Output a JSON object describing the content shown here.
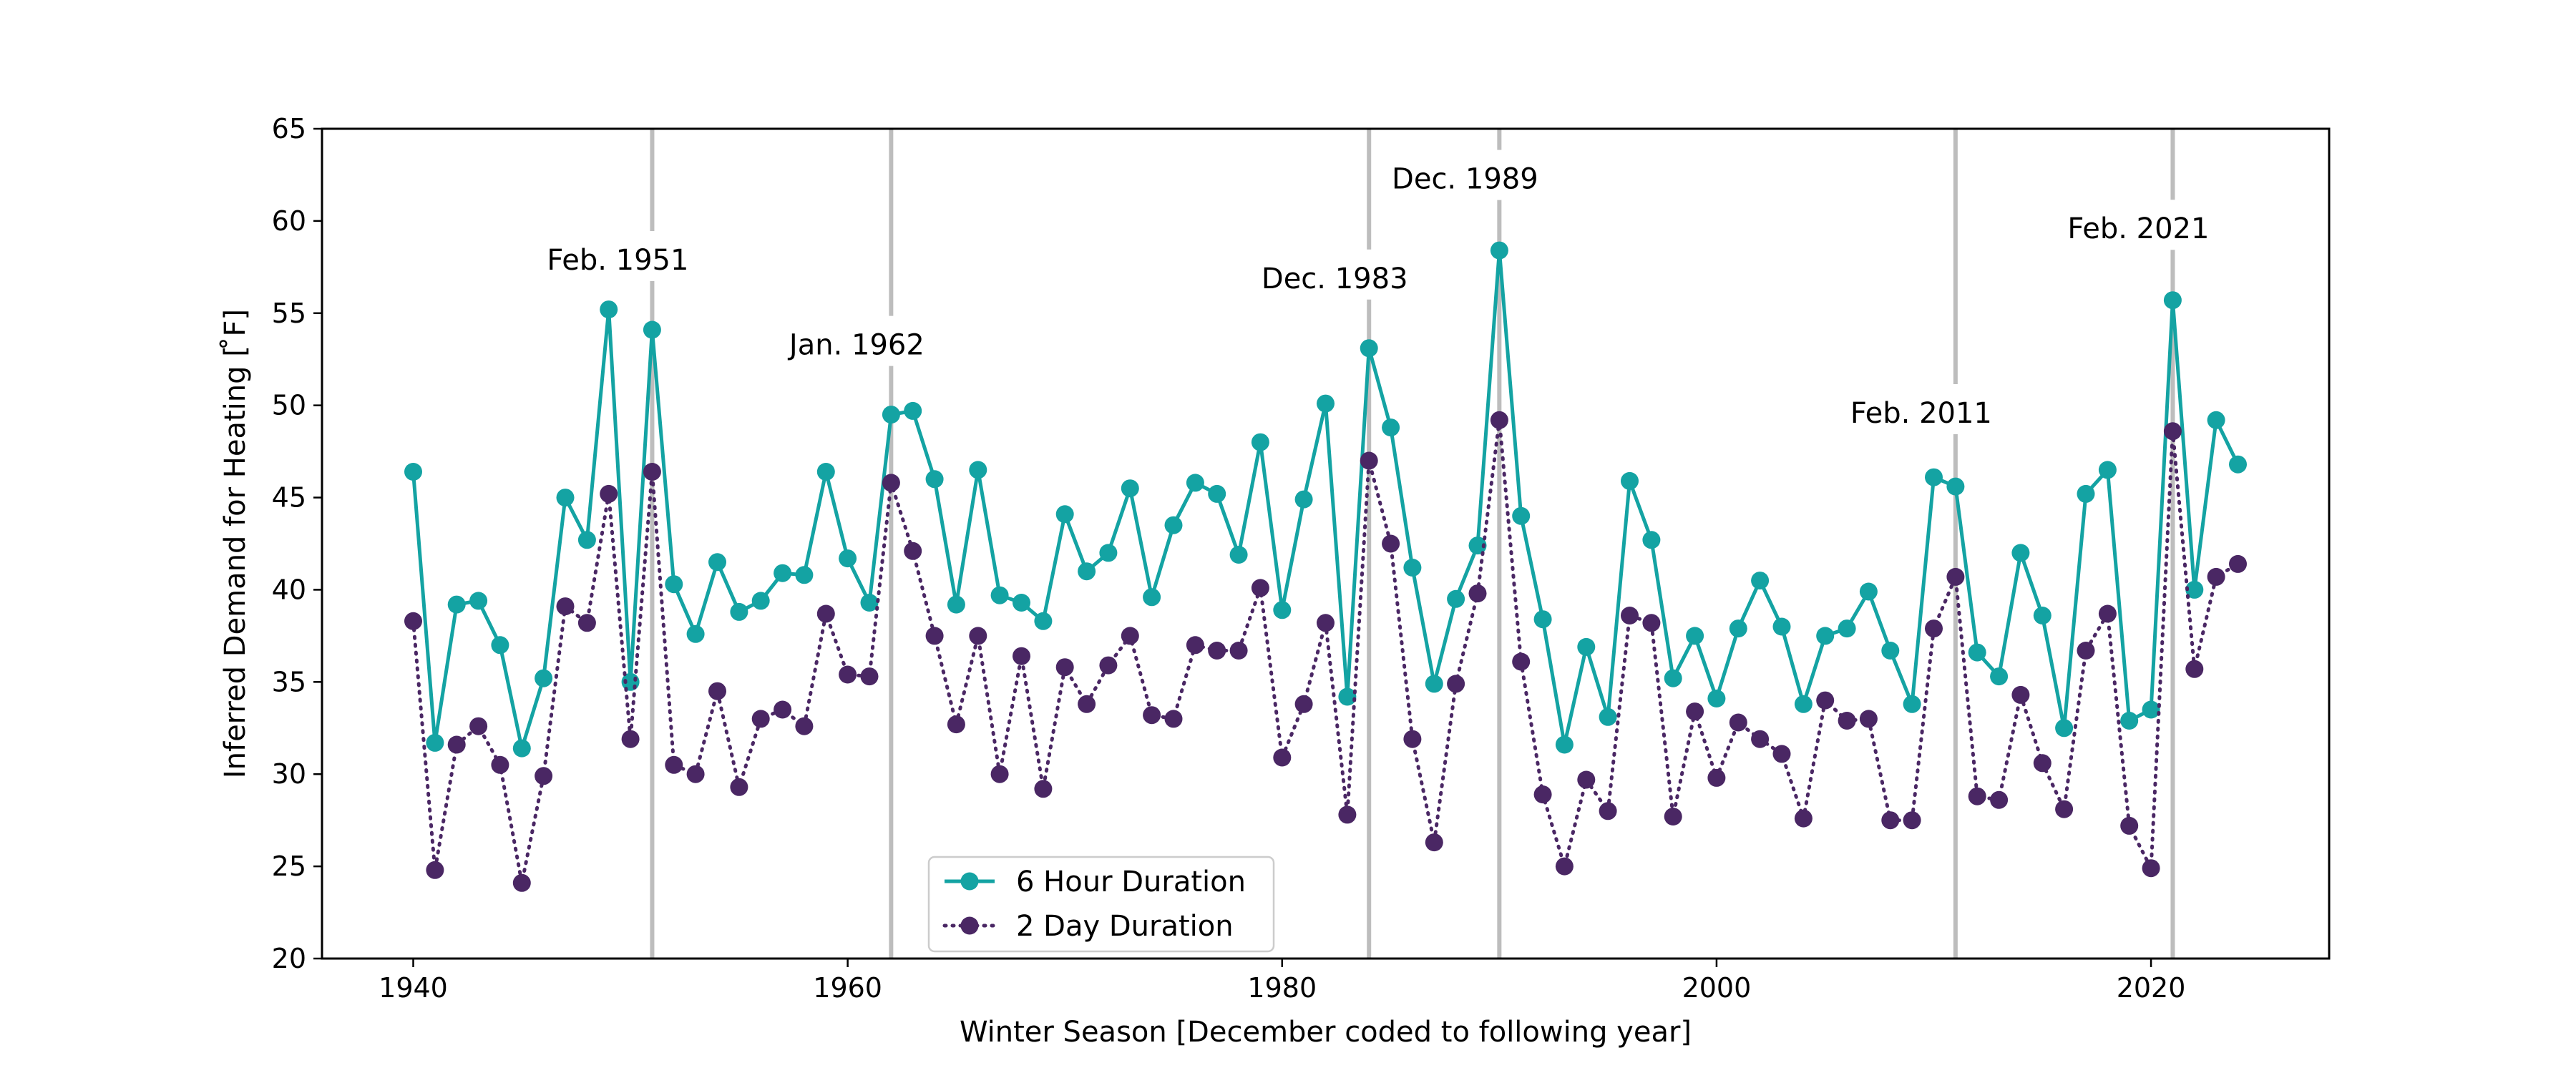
{
  "chart_data": {
    "type": "line",
    "xlabel": "Winter Season [December coded to following year]",
    "ylabel": "Inferred Demand for Heating [$^\\circ$F]",
    "ylabel_display": "Inferred Demand for Heating [ ̊F]",
    "xlim": [
      1935.8,
      2028.2
    ],
    "ylim": [
      20,
      65
    ],
    "xticks": [
      1940,
      1960,
      1980,
      2000,
      2020
    ],
    "yticks": [
      20,
      25,
      30,
      35,
      40,
      45,
      50,
      55,
      60,
      65
    ],
    "grid": false,
    "legend_position": "bottom-center",
    "x": [
      1940,
      1941,
      1942,
      1943,
      1944,
      1945,
      1946,
      1947,
      1948,
      1949,
      1950,
      1951,
      1952,
      1953,
      1954,
      1955,
      1956,
      1957,
      1958,
      1959,
      1960,
      1961,
      1962,
      1963,
      1964,
      1965,
      1966,
      1967,
      1968,
      1969,
      1970,
      1971,
      1972,
      1973,
      1974,
      1975,
      1976,
      1977,
      1978,
      1979,
      1980,
      1981,
      1982,
      1983,
      1984,
      1985,
      1986,
      1987,
      1988,
      1989,
      1990,
      1991,
      1992,
      1993,
      1994,
      1995,
      1996,
      1997,
      1998,
      1999,
      2000,
      2001,
      2002,
      2003,
      2004,
      2005,
      2006,
      2007,
      2008,
      2009,
      2010,
      2011,
      2012,
      2013,
      2014,
      2015,
      2016,
      2017,
      2018,
      2019,
      2020,
      2021,
      2022,
      2023,
      2024
    ],
    "series": [
      {
        "name": "6 Hour Duration",
        "color": "#14a3a3",
        "style": "solid",
        "values": [
          46.4,
          31.7,
          39.2,
          39.4,
          37.0,
          31.4,
          35.2,
          45.0,
          42.7,
          55.2,
          35.0,
          54.1,
          40.3,
          37.6,
          41.5,
          38.8,
          39.4,
          40.9,
          40.8,
          46.4,
          41.7,
          39.3,
          49.5,
          49.7,
          46.0,
          39.2,
          46.5,
          39.7,
          39.3,
          38.3,
          44.1,
          41.0,
          42.0,
          45.5,
          39.6,
          43.5,
          45.8,
          45.2,
          41.9,
          48.0,
          38.9,
          44.9,
          50.1,
          34.2,
          53.1,
          48.8,
          41.2,
          34.9,
          39.5,
          42.4,
          58.4,
          44.0,
          38.4,
          31.6,
          36.9,
          33.1,
          45.9,
          42.7,
          35.2,
          37.5,
          34.1,
          37.9,
          40.5,
          38.0,
          33.8,
          37.5,
          37.9,
          39.9,
          36.7,
          33.8,
          46.1,
          45.6,
          36.6,
          35.3,
          42.0,
          38.6,
          32.5,
          45.2,
          46.5,
          32.9,
          33.5,
          55.7,
          40.0,
          49.2,
          46.8
        ]
      },
      {
        "name": "2 Day Duration",
        "color": "#4a2764",
        "style": "dotted",
        "values": [
          38.3,
          24.8,
          31.6,
          32.6,
          30.5,
          24.1,
          29.9,
          39.1,
          38.2,
          45.2,
          31.9,
          46.4,
          30.5,
          30.0,
          34.5,
          29.3,
          33.0,
          33.5,
          32.6,
          38.7,
          35.4,
          35.3,
          45.8,
          42.1,
          37.5,
          32.7,
          37.5,
          30.0,
          36.4,
          29.2,
          35.8,
          33.8,
          35.9,
          37.5,
          33.2,
          33.0,
          37.0,
          36.7,
          36.7,
          40.1,
          30.9,
          33.8,
          38.2,
          27.8,
          47.0,
          42.5,
          31.9,
          26.3,
          34.9,
          39.8,
          49.2,
          36.1,
          28.9,
          25.0,
          29.7,
          28.0,
          38.6,
          38.2,
          27.7,
          33.4,
          29.8,
          32.8,
          31.9,
          31.1,
          27.6,
          34.0,
          32.9,
          33.0,
          27.5,
          27.5,
          37.9,
          40.7,
          28.8,
          28.6,
          34.3,
          30.6,
          28.1,
          36.7,
          38.7,
          27.2,
          24.9,
          48.6,
          35.7,
          40.7,
          41.4
        ]
      }
    ],
    "events": [
      {
        "label": "Feb. 1951",
        "x": 1951,
        "label_y": 57.9
      },
      {
        "label": "Jan. 1962",
        "x": 1962,
        "label_y": 53.3
      },
      {
        "label": "Dec. 1983",
        "x": 1984,
        "label_y": 56.9
      },
      {
        "label": "Dec. 1989",
        "x": 1990,
        "label_y": 62.3
      },
      {
        "label": "Feb. 2011",
        "x": 2011,
        "label_y": 49.6
      },
      {
        "label": "Feb. 2021",
        "x": 2021,
        "label_y": 59.6
      }
    ],
    "event_line_color": "#bdbdbd"
  }
}
